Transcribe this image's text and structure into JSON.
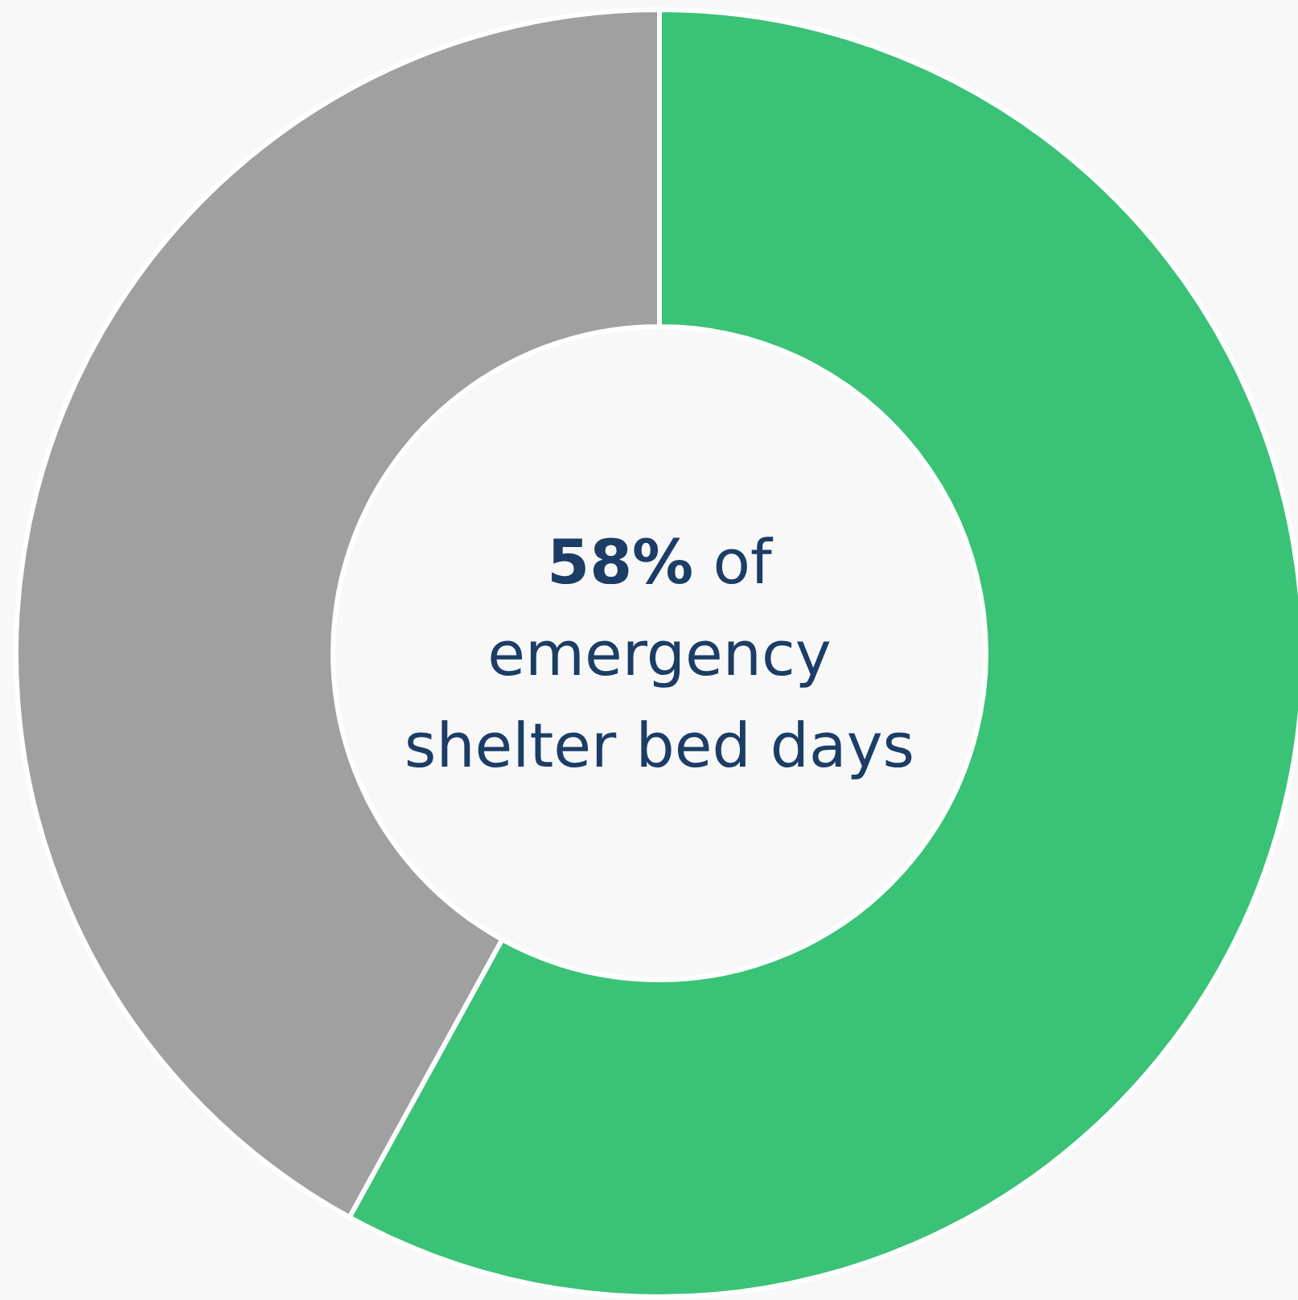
{
  "chart_data": {
    "type": "donut",
    "categories": [
      null,
      null
    ],
    "values": [
      58,
      42
    ],
    "colors": [
      "#3ac276",
      "#a0a0a0"
    ],
    "annotations": [
      "58% of emergency shelter bed days"
    ],
    "legend": false
  }
}
